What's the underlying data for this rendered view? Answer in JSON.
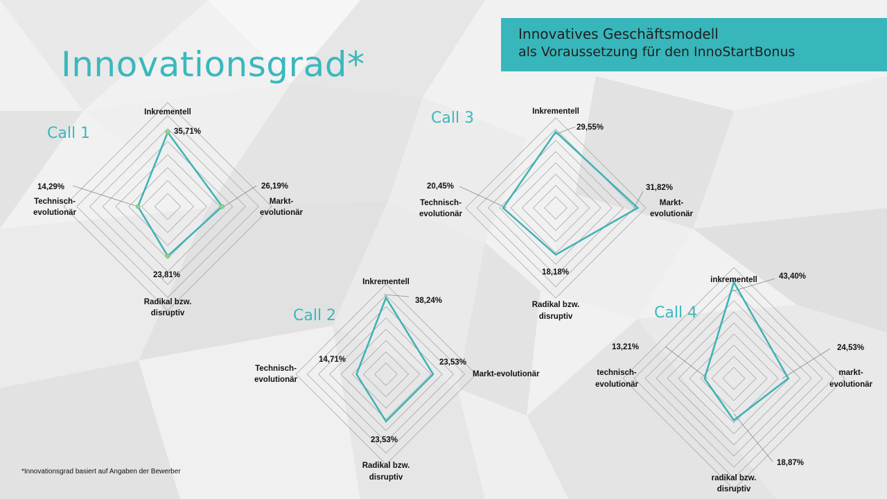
{
  "title": "Innovationsgrad*",
  "banner": {
    "line1": "Innovatives Geschäftsmodell",
    "line2": "als Voraussetzung für den InnoStartBonus"
  },
  "footnote": "*Innovationsgrad basiert auf Angaben der Bewerber",
  "colors": {
    "accent": "#39b8bd",
    "line": "#3db2b5",
    "marker": "#8fd38a",
    "grid": "#a8a8a8"
  },
  "chart_data": [
    {
      "type": "radar",
      "title": "Call 1",
      "axes": [
        {
          "label": [
            "Inkrementell"
          ],
          "value": 35.71,
          "value_label": "35,71%"
        },
        {
          "label": [
            "Markt-",
            "evolutionär"
          ],
          "value": 26.19,
          "value_label": "26,19%"
        },
        {
          "label": [
            "Radikal bzw.",
            "disruptiv"
          ],
          "value": 23.81,
          "value_label": "23,81%"
        },
        {
          "label": [
            "Technisch-",
            "evolutionär"
          ],
          "value": 14.29,
          "value_label": "14,29%"
        }
      ],
      "rmax": 50,
      "rings": 8,
      "markers": true
    },
    {
      "type": "radar",
      "title": "Call 2",
      "axes": [
        {
          "label": [
            "Inkrementell"
          ],
          "value": 38.24,
          "value_label": "38,24%"
        },
        {
          "label": [
            "Markt-evolutionär"
          ],
          "value": 23.53,
          "value_label": "23,53%"
        },
        {
          "label": [
            "Radikal bzw.",
            "disruptiv"
          ],
          "value": 23.53,
          "value_label": "23,53%"
        },
        {
          "label": [
            "Technisch-",
            "evolutionär"
          ],
          "value": 14.71,
          "value_label": "14,71%"
        }
      ],
      "rmax": 45,
      "rings": 8,
      "markers": false
    },
    {
      "type": "radar",
      "title": "Call 3",
      "axes": [
        {
          "label": [
            "Inkrementell"
          ],
          "value": 29.55,
          "value_label": "29,55%"
        },
        {
          "label": [
            "Markt-",
            "evolutionär"
          ],
          "value": 31.82,
          "value_label": "31,82%"
        },
        {
          "label": [
            "Radikal bzw.",
            "disruptiv"
          ],
          "value": 18.18,
          "value_label": "18,18%"
        },
        {
          "label": [
            "Technisch-",
            "evolutionär"
          ],
          "value": 20.45,
          "value_label": "20,45%"
        }
      ],
      "rmax": 35,
      "rings": 8,
      "markers": false
    },
    {
      "type": "radar",
      "title": "Call 4",
      "axes": [
        {
          "label": [
            "inkrementell"
          ],
          "value": 43.4,
          "value_label": "43,40%"
        },
        {
          "label": [
            "markt-",
            "evolutionär"
          ],
          "value": 24.53,
          "value_label": "24,53%"
        },
        {
          "label": [
            "radikal bzw.",
            "disruptiv"
          ],
          "value": 18.87,
          "value_label": "18,87%"
        },
        {
          "label": [
            "technisch-",
            "evolutionär"
          ],
          "value": 13.21,
          "value_label": "13,21%"
        }
      ],
      "rmax": 50,
      "rings": 10,
      "markers": false
    }
  ]
}
